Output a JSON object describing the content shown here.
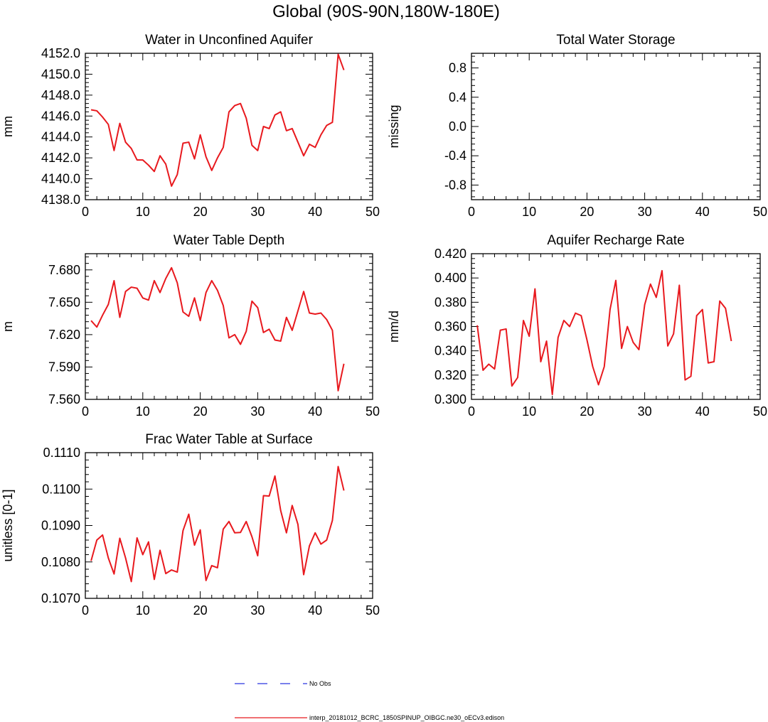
{
  "figure": {
    "title": "Global (90S-90N,180W-180E)"
  },
  "colors": {
    "series_line": "#e8191e",
    "obs_line": "#2b35e0",
    "axis": "#000000"
  },
  "legend": {
    "obs_label": "No Obs",
    "model_label": "interp_20181012_BCRC_1850SPINUP_OIBGC.ne30_oECv3.edison"
  },
  "chart_data": [
    {
      "type": "line",
      "title": "Water in Unconfined Aquifer",
      "xlabel": "",
      "ylabel": "mm",
      "xlim": [
        0,
        50
      ],
      "ylim": [
        4138.0,
        4152.0
      ],
      "xticks": [
        "0",
        "10",
        "20",
        "30",
        "40",
        "50"
      ],
      "yticks": [
        {
          "value": 4138.0,
          "label": "4138.0"
        },
        {
          "value": 4140.0,
          "label": "4140.0"
        },
        {
          "value": 4142.0,
          "label": "4142.0"
        },
        {
          "value": 4144.0,
          "label": "4144.0"
        },
        {
          "value": 4146.0,
          "label": "4146.0"
        },
        {
          "value": 4148.0,
          "label": "4148.0"
        },
        {
          "value": 4150.0,
          "label": "4150.0"
        },
        {
          "value": 4152.0,
          "label": "4152.0"
        }
      ],
      "series": [
        {
          "x": [
            1,
            2,
            3,
            4,
            5,
            6,
            7,
            8,
            9,
            10,
            11,
            12,
            13,
            14,
            15,
            16,
            17,
            18,
            19,
            20,
            21,
            22,
            23,
            24,
            25,
            26,
            27,
            28,
            29,
            30,
            31,
            32,
            33,
            34,
            35,
            36,
            37,
            38,
            39,
            40,
            41,
            42,
            43,
            44,
            45
          ],
          "values": [
            4146.6,
            4146.5,
            4145.9,
            4145.2,
            4142.7,
            4145.3,
            4143.5,
            4142.9,
            4141.8,
            4141.8,
            4141.3,
            4140.7,
            4142.2,
            4141.4,
            4139.3,
            4140.4,
            4143.4,
            4143.5,
            4141.9,
            4144.2,
            4142.1,
            4140.8,
            4142.0,
            4143.0,
            4146.4,
            4147.0,
            4147.2,
            4145.8,
            4143.2,
            4142.7,
            4145.0,
            4144.8,
            4146.1,
            4146.4,
            4144.6,
            4144.8,
            4143.5,
            4142.2,
            4143.3,
            4143.0,
            4144.2,
            4145.1,
            4145.4,
            4151.9,
            4150.4
          ]
        }
      ]
    },
    {
      "type": "line",
      "title": "Total Water Storage",
      "xlabel": "",
      "ylabel": "missing",
      "xlim": [
        0,
        50
      ],
      "ylim": [
        -1.0,
        1.0
      ],
      "xticks": [
        "0",
        "10",
        "20",
        "30",
        "40",
        "50"
      ],
      "yticks": [
        {
          "value": -0.8,
          "label": "-0.8"
        },
        {
          "value": -0.4,
          "label": "-0.4"
        },
        {
          "value": 0.0,
          "label": "0.0"
        },
        {
          "value": 0.4,
          "label": "0.4"
        },
        {
          "value": 0.8,
          "label": "0.8"
        }
      ],
      "series": []
    },
    {
      "type": "line",
      "title": "Water Table Depth",
      "xlabel": "",
      "ylabel": "m",
      "xlim": [
        0,
        50
      ],
      "ylim": [
        7.56,
        7.695
      ],
      "xticks": [
        "0",
        "10",
        "20",
        "30",
        "40",
        "50"
      ],
      "yticks": [
        {
          "value": 7.56,
          "label": "7.560"
        },
        {
          "value": 7.59,
          "label": "7.590"
        },
        {
          "value": 7.62,
          "label": "7.620"
        },
        {
          "value": 7.65,
          "label": "7.650"
        },
        {
          "value": 7.68,
          "label": "7.680"
        }
      ],
      "series": [
        {
          "x": [
            1,
            2,
            3,
            4,
            5,
            6,
            7,
            8,
            9,
            10,
            11,
            12,
            13,
            14,
            15,
            16,
            17,
            18,
            19,
            20,
            21,
            22,
            23,
            24,
            25,
            26,
            27,
            28,
            29,
            30,
            31,
            32,
            33,
            34,
            35,
            36,
            37,
            38,
            39,
            40,
            41,
            42,
            43,
            44,
            45
          ],
          "values": [
            7.633,
            7.627,
            7.638,
            7.648,
            7.67,
            7.636,
            7.66,
            7.664,
            7.663,
            7.654,
            7.652,
            7.67,
            7.659,
            7.672,
            7.682,
            7.668,
            7.641,
            7.637,
            7.654,
            7.633,
            7.659,
            7.67,
            7.661,
            7.647,
            7.617,
            7.62,
            7.611,
            7.623,
            7.651,
            7.645,
            7.622,
            7.625,
            7.615,
            7.614,
            7.636,
            7.624,
            7.642,
            7.66,
            7.64,
            7.639,
            7.64,
            7.634,
            7.624,
            7.568,
            7.593
          ]
        }
      ]
    },
    {
      "type": "line",
      "title": "Aquifer Recharge Rate",
      "xlabel": "",
      "ylabel": "mm/d",
      "xlim": [
        0,
        50
      ],
      "ylim": [
        0.3,
        0.42
      ],
      "xticks": [
        "0",
        "10",
        "20",
        "30",
        "40",
        "50"
      ],
      "yticks": [
        {
          "value": 0.3,
          "label": "0.300"
        },
        {
          "value": 0.32,
          "label": "0.320"
        },
        {
          "value": 0.34,
          "label": "0.340"
        },
        {
          "value": 0.36,
          "label": "0.360"
        },
        {
          "value": 0.38,
          "label": "0.380"
        },
        {
          "value": 0.4,
          "label": "0.400"
        },
        {
          "value": 0.42,
          "label": "0.420"
        }
      ],
      "series": [
        {
          "x": [
            1,
            2,
            3,
            4,
            5,
            6,
            7,
            8,
            9,
            10,
            11,
            12,
            13,
            14,
            15,
            16,
            17,
            18,
            19,
            20,
            21,
            22,
            23,
            24,
            25,
            26,
            27,
            28,
            29,
            30,
            31,
            32,
            33,
            34,
            35,
            36,
            37,
            38,
            39,
            40,
            41,
            42,
            43,
            44,
            45
          ],
          "values": [
            0.361,
            0.324,
            0.329,
            0.325,
            0.357,
            0.358,
            0.311,
            0.318,
            0.365,
            0.352,
            0.391,
            0.331,
            0.348,
            0.304,
            0.351,
            0.365,
            0.36,
            0.371,
            0.369,
            0.349,
            0.327,
            0.312,
            0.327,
            0.374,
            0.398,
            0.342,
            0.36,
            0.347,
            0.341,
            0.378,
            0.395,
            0.384,
            0.406,
            0.344,
            0.354,
            0.394,
            0.316,
            0.319,
            0.369,
            0.374,
            0.33,
            0.331,
            0.381,
            0.375,
            0.348
          ]
        }
      ]
    },
    {
      "type": "line",
      "title": "Frac Water Table at Surface",
      "xlabel": "",
      "ylabel": "unitless [0-1]",
      "xlim": [
        0,
        50
      ],
      "ylim": [
        0.107,
        0.111
      ],
      "xticks": [
        "0",
        "10",
        "20",
        "30",
        "40",
        "50"
      ],
      "yticks": [
        {
          "value": 0.107,
          "label": "0.1070"
        },
        {
          "value": 0.108,
          "label": "0.1080"
        },
        {
          "value": 0.109,
          "label": "0.1090"
        },
        {
          "value": 0.11,
          "label": "0.1100"
        },
        {
          "value": 0.111,
          "label": "0.1110"
        }
      ],
      "series": [
        {
          "x": [
            1,
            2,
            3,
            4,
            5,
            6,
            7,
            8,
            9,
            10,
            11,
            12,
            13,
            14,
            15,
            16,
            17,
            18,
            19,
            20,
            21,
            22,
            23,
            24,
            25,
            26,
            27,
            28,
            29,
            30,
            31,
            32,
            33,
            34,
            35,
            36,
            37,
            38,
            39,
            40,
            41,
            42,
            43,
            44,
            45
          ],
          "values": [
            0.10803,
            0.1086,
            0.10874,
            0.10811,
            0.10767,
            0.10865,
            0.10811,
            0.10746,
            0.10866,
            0.1082,
            0.10855,
            0.10752,
            0.10832,
            0.10768,
            0.10778,
            0.10772,
            0.10886,
            0.10931,
            0.10846,
            0.10888,
            0.10749,
            0.1079,
            0.10784,
            0.1089,
            0.10911,
            0.1088,
            0.10881,
            0.10911,
            0.10869,
            0.10817,
            0.10982,
            0.10981,
            0.11036,
            0.10941,
            0.1088,
            0.10955,
            0.10903,
            0.10765,
            0.10844,
            0.1088,
            0.10849,
            0.1086,
            0.10914,
            0.11062,
            0.10996
          ]
        }
      ]
    }
  ]
}
